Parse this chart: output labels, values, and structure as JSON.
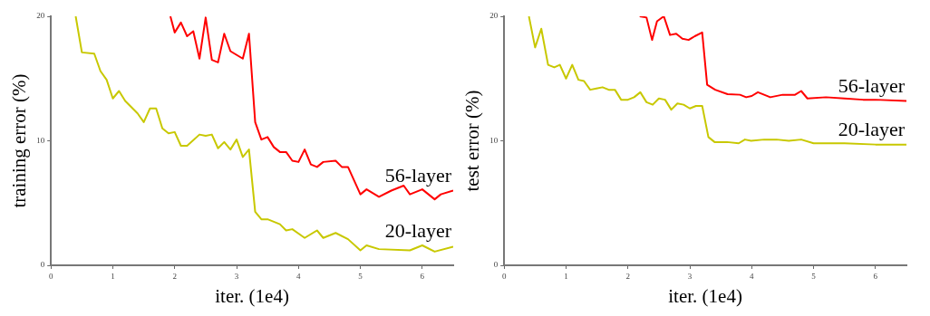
{
  "chart_data": [
    {
      "type": "line",
      "xlabel": "iter. (1e4)",
      "ylabel": "training error (%)",
      "xlim": [
        0,
        6.5
      ],
      "xticks": [
        0,
        1,
        2,
        3,
        4,
        5,
        6
      ],
      "ylim": [
        0,
        20
      ],
      "yticks": [
        0,
        10,
        20
      ],
      "grid": false,
      "legend": false,
      "marker": "none",
      "line_style": "solid",
      "series": [
        {
          "name": "56-layer",
          "color": "#ff0000",
          "x": [
            1.93,
            2.0,
            2.1,
            2.2,
            2.3,
            2.4,
            2.5,
            2.6,
            2.7,
            2.8,
            2.9,
            3.1,
            3.2,
            3.3,
            3.4,
            3.5,
            3.6,
            3.7,
            3.8,
            3.9,
            4.0,
            4.1,
            4.2,
            4.3,
            4.4,
            4.6,
            4.7,
            4.8,
            5.0,
            5.1,
            5.3,
            5.5,
            5.7,
            5.8,
            6.0,
            6.2,
            6.3,
            6.5
          ],
          "values": [
            20,
            18.7,
            19.5,
            18.4,
            18.8,
            16.6,
            19.9,
            16.5,
            16.3,
            18.6,
            17.2,
            16.6,
            18.6,
            11.5,
            10.1,
            10.3,
            9.5,
            9.1,
            9.1,
            8.4,
            8.3,
            9.3,
            8.1,
            7.9,
            8.3,
            8.4,
            7.9,
            7.9,
            5.7,
            6.1,
            5.5,
            6.0,
            6.4,
            5.7,
            6.1,
            5.3,
            5.7,
            6.0
          ]
        },
        {
          "name": "20-layer",
          "color": "#c8c800",
          "x": [
            0.4,
            0.5,
            0.7,
            0.8,
            0.9,
            1.0,
            1.1,
            1.2,
            1.4,
            1.5,
            1.6,
            1.7,
            1.8,
            1.9,
            2.0,
            2.1,
            2.2,
            2.4,
            2.5,
            2.6,
            2.7,
            2.8,
            2.9,
            3.0,
            3.1,
            3.2,
            3.3,
            3.4,
            3.5,
            3.7,
            3.8,
            3.9,
            4.1,
            4.3,
            4.4,
            4.6,
            4.8,
            5.0,
            5.1,
            5.3,
            5.8,
            6.0,
            6.2,
            6.5
          ],
          "values": [
            20,
            17.1,
            17.0,
            15.6,
            14.9,
            13.4,
            14.0,
            13.2,
            12.2,
            11.5,
            12.6,
            12.6,
            11.0,
            10.6,
            10.7,
            9.6,
            9.6,
            10.5,
            10.4,
            10.5,
            9.4,
            9.9,
            9.3,
            10.1,
            8.7,
            9.3,
            4.3,
            3.7,
            3.7,
            3.3,
            2.8,
            2.9,
            2.2,
            2.8,
            2.2,
            2.6,
            2.1,
            1.2,
            1.6,
            1.3,
            1.2,
            1.6,
            1.1,
            1.5
          ]
        }
      ]
    },
    {
      "type": "line",
      "xlabel": "iter. (1e4)",
      "ylabel": "test error (%)",
      "xlim": [
        0,
        6.5
      ],
      "xticks": [
        0,
        1,
        2,
        3,
        4,
        5,
        6
      ],
      "ylim": [
        0,
        20
      ],
      "yticks": [
        0,
        10,
        20
      ],
      "grid": false,
      "legend": false,
      "marker": "none",
      "line_style": "solid",
      "series": [
        {
          "name": "56-layer",
          "color": "#ff0000",
          "x": [
            2.19,
            2.3,
            2.39,
            2.47,
            2.58,
            2.68,
            2.78,
            2.88,
            2.98,
            3.08,
            3.2,
            3.28,
            3.41,
            3.61,
            3.81,
            3.91,
            4.0,
            4.1,
            4.3,
            4.5,
            4.7,
            4.8,
            4.9,
            5.2,
            5.5,
            5.8,
            6.0,
            6.5
          ],
          "values": [
            20,
            19.9,
            18.1,
            19.6,
            20,
            18.5,
            18.6,
            18.2,
            18.1,
            18.4,
            18.7,
            14.5,
            14.1,
            13.75,
            13.7,
            13.5,
            13.6,
            13.9,
            13.5,
            13.7,
            13.7,
            14.0,
            13.4,
            13.5,
            13.4,
            13.3,
            13.3,
            13.2
          ]
        },
        {
          "name": "20-layer",
          "color": "#c8c800",
          "x": [
            0.4,
            0.5,
            0.6,
            0.71,
            0.81,
            0.9,
            1.0,
            1.1,
            1.2,
            1.29,
            1.39,
            1.49,
            1.59,
            1.69,
            1.79,
            1.89,
            2.0,
            2.1,
            2.2,
            2.3,
            2.4,
            2.5,
            2.6,
            2.7,
            2.8,
            2.9,
            3.0,
            3.1,
            3.2,
            3.3,
            3.4,
            3.6,
            3.79,
            3.89,
            3.99,
            4.2,
            4.4,
            4.6,
            4.8,
            5.0,
            5.5,
            6.0,
            6.5
          ],
          "values": [
            20,
            17.5,
            19,
            16.1,
            15.9,
            16.1,
            15.0,
            16.1,
            14.9,
            14.8,
            14.1,
            14.2,
            14.3,
            14.1,
            14.1,
            13.3,
            13.3,
            13.5,
            13.9,
            13.1,
            12.9,
            13.4,
            13.3,
            12.5,
            13.0,
            12.9,
            12.6,
            12.8,
            12.8,
            10.3,
            9.9,
            9.9,
            9.8,
            10.1,
            10.0,
            10.1,
            10.1,
            10.0,
            10.1,
            9.8,
            9.8,
            9.7,
            9.7
          ]
        }
      ]
    }
  ]
}
